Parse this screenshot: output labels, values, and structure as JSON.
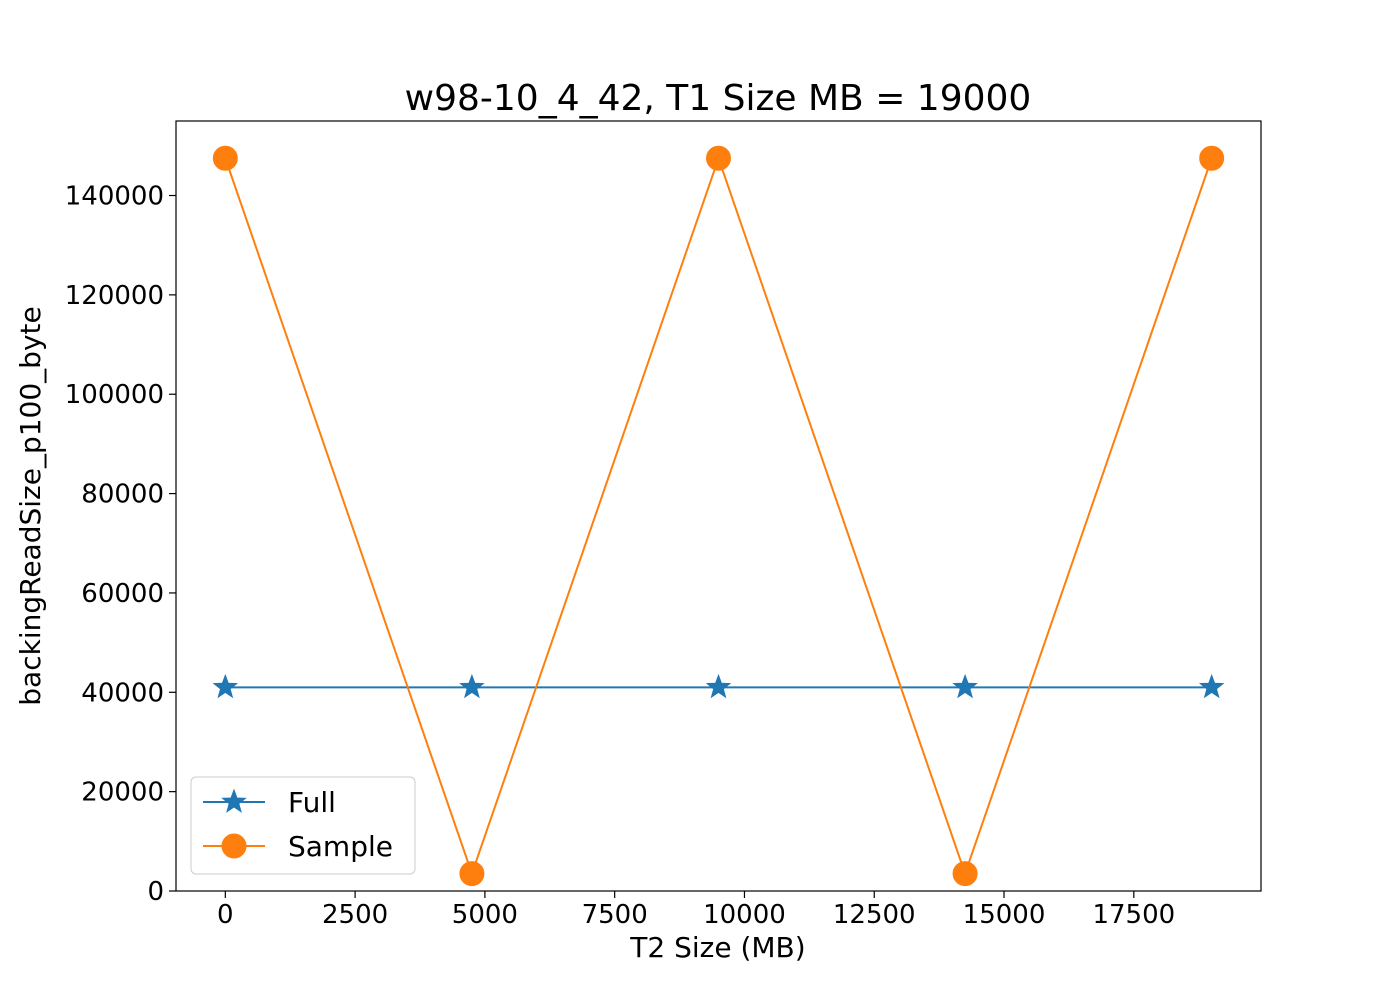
{
  "chart_data": {
    "type": "line",
    "title": "w98-10_4_42, T1 Size MB = 19000",
    "xlabel": "T2 Size (MB)",
    "ylabel": "backingReadSize_p100_byte",
    "xlim": [
      -950,
      19950
    ],
    "ylim": [
      0,
      155000
    ],
    "xticks": [
      0,
      2500,
      5000,
      7500,
      10000,
      12500,
      15000,
      17500
    ],
    "yticks": [
      0,
      20000,
      40000,
      60000,
      80000,
      100000,
      120000,
      140000
    ],
    "x": [
      0,
      4750,
      9500,
      14250,
      19000
    ],
    "series": [
      {
        "name": "Full",
        "color": "#1f77b4",
        "marker": "star",
        "values": [
          41000,
          41000,
          41000,
          41000,
          41000
        ]
      },
      {
        "name": "Sample",
        "color": "#ff7f0e",
        "marker": "circle",
        "values": [
          147500,
          3500,
          147500,
          3500,
          147500
        ]
      }
    ],
    "legend": "lower-left",
    "grid": false
  }
}
